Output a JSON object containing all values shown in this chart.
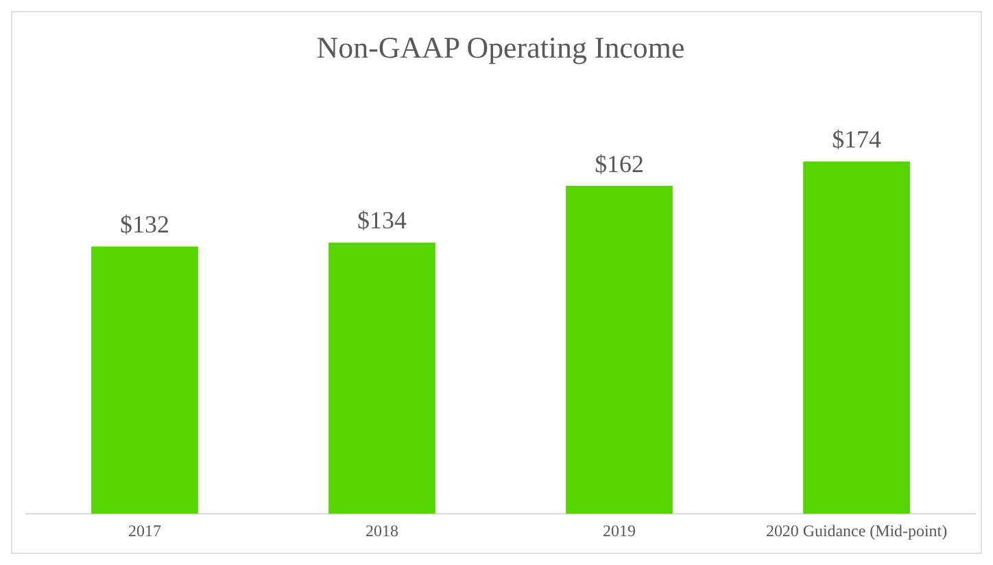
{
  "chart_data": {
    "type": "bar",
    "title": "Non-GAAP Operating Income",
    "categories": [
      "2017",
      "2018",
      "2019",
      "2020 Guidance (Mid-point)"
    ],
    "values": [
      132,
      134,
      162,
      174
    ],
    "value_labels": [
      "$132",
      "$134",
      "$162",
      "$174"
    ],
    "color": "#55d400",
    "grid": false,
    "legend": false
  }
}
